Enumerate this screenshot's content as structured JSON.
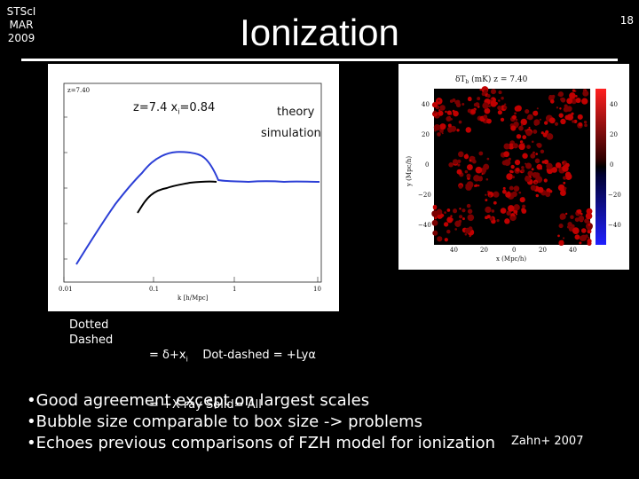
{
  "slide": {
    "corner_label": "STScI\nMAR\n2009",
    "title": "Ionization",
    "slide_number": "18",
    "citation": "Zahn+ 2007"
  },
  "left_plot": {
    "redshift_tag": "z=7.40",
    "caption_z": "z=7.4",
    "caption_x": "x",
    "caption_sub": "i",
    "caption_val": "=0.84",
    "theory_label": "theory",
    "simulation_label": "simulation",
    "x_axis_label": "k [h/Mpc]",
    "x_ticks": [
      "0.01",
      "0.1",
      "1",
      "10"
    ]
  },
  "right_plot": {
    "title": "δT",
    "title_sub": "b",
    "title_rest": " (mK)  z =  7.40",
    "y_axis_label": "y (Mpc/h)",
    "x_axis_label": "x (Mpc/h)",
    "y_ticks": [
      "40",
      "20",
      "0",
      "−20",
      "−40"
    ],
    "x_ticks": [
      "40",
      "20",
      "0",
      "20",
      "40"
    ],
    "colorbar_ticks": [
      "40",
      "20",
      "0",
      "−20",
      "−40"
    ]
  },
  "legend": {
    "col1": [
      "Dotted",
      "Dashed"
    ],
    "line1_a": "= δ+x",
    "line1_sub": "i",
    "line1_b": "    Dot-dashed = +Lyα",
    "line2": "= +X-ray Solid= All"
  },
  "bullets": [
    "•Good agreement except on largest scales",
    "•Bubble size comparable to box size -> problems",
    "•Echoes previous comparisons of FZH model for ionization"
  ],
  "colors": {
    "theory_curve": "#2c3fd6",
    "simulation_curve": "#000000",
    "map_positive": "#c00000",
    "map_negative": "#0000d0"
  }
}
